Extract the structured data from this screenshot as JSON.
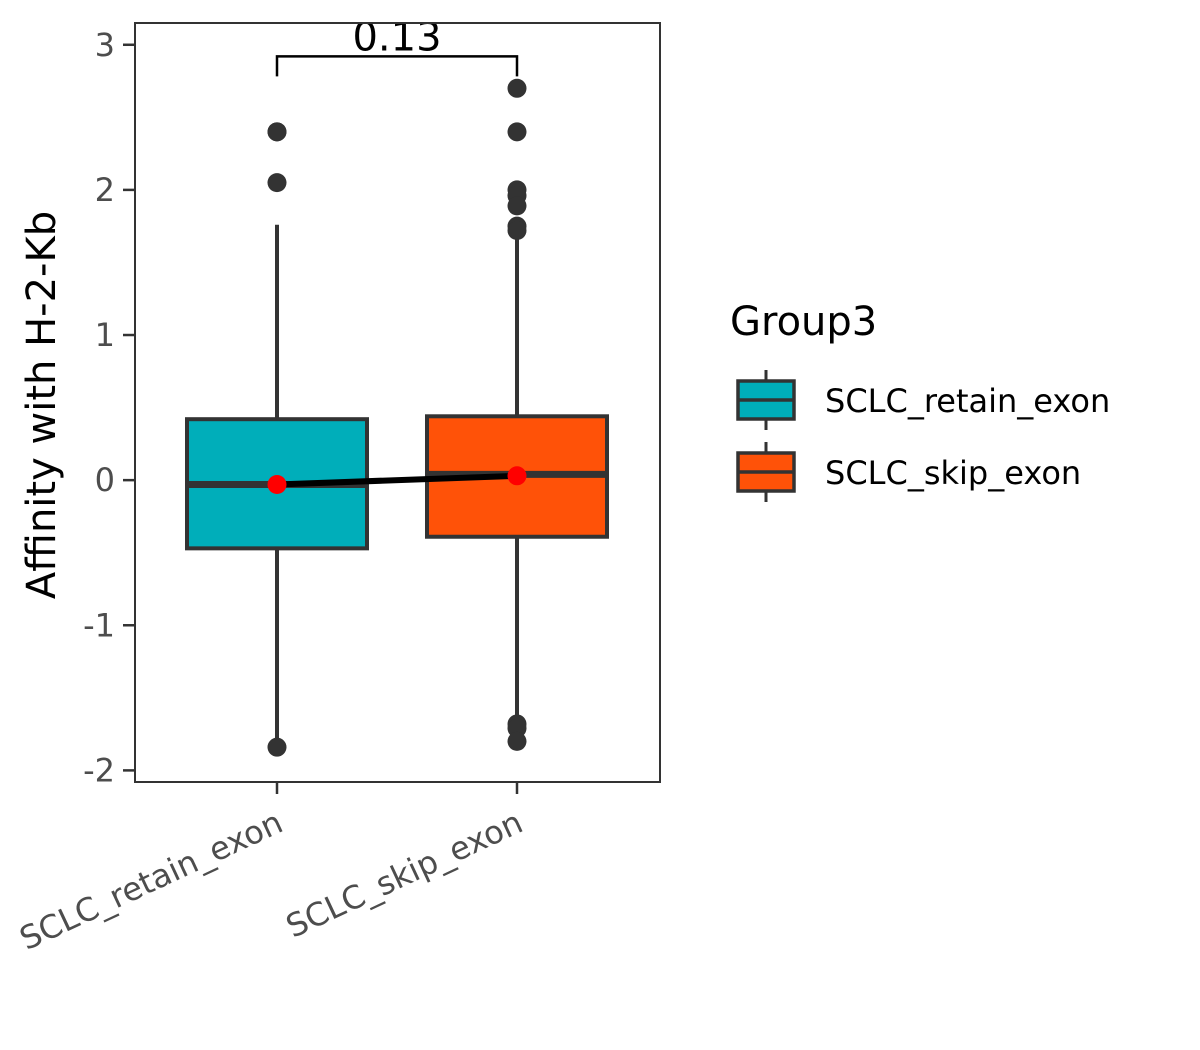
{
  "chart_data": {
    "type": "box",
    "ylabel": "Affinity with H-2-Kb",
    "xlabel": "",
    "ylim": [
      -2.08,
      3.15
    ],
    "yticks": [
      -2,
      -1,
      0,
      1,
      2,
      3
    ],
    "categories": [
      "SCLC_retain_exon",
      "SCLC_skip_exon"
    ],
    "legend": {
      "title": "Group3",
      "position": "right"
    },
    "series": [
      {
        "name": "SCLC_retain_exon",
        "color": "#00AEBA",
        "q1": -0.47,
        "median": -0.03,
        "q3": 0.42,
        "whisker_low": -1.82,
        "whisker_high": 1.76,
        "mean": -0.03,
        "outliers": [
          2.4,
          2.4,
          2.05,
          -1.84
        ]
      },
      {
        "name": "SCLC_skip_exon",
        "color": "#FF5208",
        "q1": -0.39,
        "median": 0.04,
        "q3": 0.44,
        "whisker_low": -1.66,
        "whisker_high": 1.7,
        "mean": 0.03,
        "outliers": [
          2.7,
          2.4,
          2.0,
          1.96,
          1.89,
          1.75,
          1.72,
          -1.68,
          -1.71,
          -1.8
        ]
      }
    ],
    "comparison": {
      "label": "0.13",
      "from": "SCLC_retain_exon",
      "to": "SCLC_skip_exon",
      "y": 2.92
    }
  }
}
